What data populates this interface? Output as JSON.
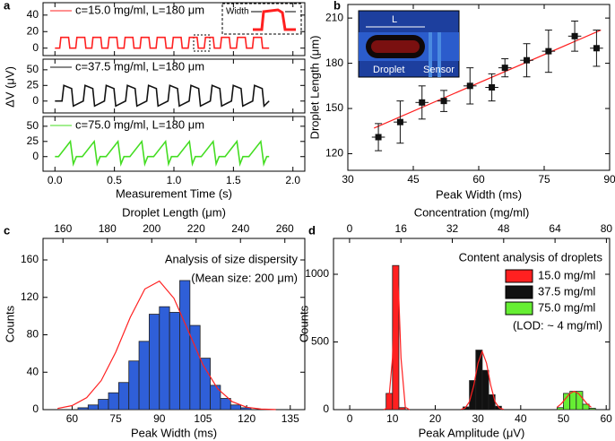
{
  "chart_data": [
    {
      "type": "line",
      "panel": "a",
      "xlim": [
        -0.1,
        2.1
      ],
      "xticks": [
        {
          "value": 0,
          "label": "0.0"
        },
        0.5,
        {
          "value": 1,
          "label": "1.0"
        },
        1.5,
        {
          "value": 2,
          "label": "2.0"
        }
      ],
      "ylim": [
        -9,
        55
      ],
      "yticks": [
        0,
        20,
        40
      ],
      "annotation": "Width",
      "series": [
        {
          "name": "c=15.0 mg/ml, L=180 μm",
          "color": "#ff2020",
          "x": [
            0,
            0.04,
            0.05,
            0.115,
            0.125,
            0.175,
            0.185,
            0.25,
            0.26,
            0.31,
            0.32,
            0.385,
            0.395,
            0.445,
            0.455,
            0.52,
            0.53,
            0.58,
            0.59,
            0.655,
            0.665,
            0.715,
            0.725,
            0.79,
            0.8,
            0.85,
            0.86,
            0.925,
            0.935,
            0.985,
            0.995,
            1.06,
            1.07,
            1.12,
            1.13,
            1.195,
            1.205,
            1.255,
            1.265,
            1.33,
            1.34,
            1.39,
            1.4,
            1.465,
            1.475,
            1.525,
            1.535,
            1.6,
            1.61,
            1.66,
            1.67,
            1.735,
            1.745,
            1.8
          ],
          "values": [
            0,
            0,
            13,
            13,
            0,
            0,
            13,
            13,
            0,
            0,
            13,
            13,
            0,
            0,
            13,
            13,
            0,
            0,
            13,
            13,
            0,
            0,
            13,
            13,
            0,
            0,
            13,
            13,
            0,
            0,
            13,
            13,
            0,
            0,
            13,
            13,
            0,
            0,
            13,
            13,
            0,
            0,
            13,
            13,
            0,
            0,
            13,
            13,
            0,
            0,
            13,
            13,
            0,
            0
          ]
        }
      ]
    },
    {
      "type": "line",
      "ylabel": "ΔV (μV)",
      "xlim": [
        -0.1,
        2.1
      ],
      "xticks": [
        {
          "value": 0,
          "label": "0.0"
        },
        0.5,
        {
          "value": 1,
          "label": "1.0"
        },
        1.5,
        {
          "value": 2,
          "label": "2.0"
        }
      ],
      "ylim": [
        -19,
        67
      ],
      "yticks": [
        0,
        25,
        50
      ],
      "series": [
        {
          "name": "c=37.5 mg/ml, L=180 μm",
          "color": "#111111",
          "x": [
            0,
            0.06,
            0.075,
            0.14,
            0.155,
            0.238,
            0.253,
            0.318,
            0.333,
            0.416,
            0.431,
            0.496,
            0.511,
            0.594,
            0.609,
            0.674,
            0.689,
            0.772,
            0.787,
            0.852,
            0.867,
            0.95,
            0.965,
            1.03,
            1.045,
            1.128,
            1.143,
            1.208,
            1.223,
            1.306,
            1.321,
            1.386,
            1.401,
            1.484,
            1.499,
            1.564,
            1.579,
            1.662,
            1.677,
            1.742,
            1.757,
            1.8
          ],
          "values": [
            0,
            0,
            25,
            20,
            -8,
            0,
            25,
            20,
            -8,
            0,
            25,
            20,
            -8,
            0,
            25,
            20,
            -8,
            0,
            25,
            20,
            -8,
            0,
            25,
            20,
            -8,
            0,
            25,
            20,
            -8,
            0,
            25,
            20,
            -8,
            0,
            25,
            20,
            -8,
            0,
            25,
            20,
            -8,
            0
          ]
        }
      ]
    },
    {
      "type": "line",
      "xlabel": "Measurement Time (s)",
      "xlim": [
        -0.1,
        2.1
      ],
      "xticks": [
        {
          "value": 0,
          "label": "0.0"
        },
        0.5,
        {
          "value": 1,
          "label": "1.0"
        },
        1.5,
        {
          "value": 2,
          "label": "2.0"
        }
      ],
      "ylim": [
        -24,
        66
      ],
      "yticks": [
        0,
        25,
        50
      ],
      "series": [
        {
          "name": "c=75.0 mg/ml, L=180 μm",
          "color": "#44dd22",
          "x": [
            0,
            0.03,
            0.13,
            0.155,
            0.18,
            0.23,
            0.33,
            0.355,
            0.38,
            0.43,
            0.53,
            0.555,
            0.58,
            0.63,
            0.73,
            0.755,
            0.78,
            0.83,
            0.93,
            0.955,
            0.98,
            1.03,
            1.13,
            1.155,
            1.18,
            1.23,
            1.33,
            1.355,
            1.38,
            1.43,
            1.53,
            1.555,
            1.58,
            1.63,
            1.73,
            1.755,
            1.78,
            1.8
          ],
          "values": [
            0,
            0,
            25,
            -12,
            0,
            0,
            25,
            -12,
            0,
            0,
            25,
            -12,
            0,
            0,
            25,
            -12,
            0,
            0,
            25,
            -12,
            0,
            0,
            25,
            -12,
            0,
            0,
            25,
            -12,
            0,
            0,
            25,
            -12,
            0,
            0,
            25,
            -12,
            0,
            0
          ]
        }
      ]
    },
    {
      "type": "scatter",
      "panel": "b",
      "xlabel": "Peak Width (ms)",
      "ylabel": "Droplet Length (μm)",
      "xlim": [
        30,
        90
      ],
      "xticks": [
        30,
        45,
        60,
        75,
        90
      ],
      "ylim": [
        109,
        219
      ],
      "yticks": [
        120,
        150,
        180,
        210
      ],
      "inset_labels": [
        "L",
        "Droplet",
        "Sensor"
      ],
      "x": [
        37,
        42,
        47,
        52,
        58,
        63,
        66,
        71,
        76,
        82,
        87
      ],
      "xerr": [
        1.5,
        1.5,
        1.5,
        1.5,
        1.5,
        1.5,
        1.5,
        1.5,
        1.5,
        1.5,
        1.5
      ],
      "values": [
        131,
        141,
        154,
        155,
        165,
        164,
        177,
        182,
        188,
        198,
        190
      ],
      "yerr": [
        9,
        14,
        11,
        7,
        12,
        9,
        6,
        11,
        14,
        10,
        12
      ],
      "color": "#111111",
      "fit": {
        "color": "#ff2020",
        "x": [
          36,
          88
        ],
        "y": [
          137,
          202
        ]
      }
    },
    {
      "type": "histogram",
      "panel": "c",
      "xlabel": "Peak Width (ms)",
      "ylabel": "Counts",
      "x2label": "Droplet Length (μm)",
      "xlim": [
        50,
        140
      ],
      "xticks": [
        60,
        75,
        90,
        105,
        120,
        135
      ],
      "x2lim": [
        151,
        269
      ],
      "x2ticks": [
        160,
        180,
        200,
        220,
        240,
        260
      ],
      "ylim": [
        0,
        183
      ],
      "yticks": [
        0,
        40,
        80,
        120,
        160
      ],
      "texts": [
        "Analysis of size dispersity",
        "(Mean size: 200 μm)"
      ],
      "series": [
        {
          "color": "#2f5fd8",
          "bins": [
            62,
            65.5,
            69,
            72.5,
            76,
            79.5,
            83,
            86.5,
            90,
            93.5,
            97,
            100.5,
            104,
            107.5,
            111,
            114.5,
            118,
            121.5
          ],
          "counts": [
            2,
            5,
            11,
            18,
            29,
            52,
            73,
            102,
            110,
            104,
            138,
            90,
            55,
            26,
            12,
            5,
            2
          ],
          "fit": {
            "color": "#ff2020",
            "x": [
              55,
              60,
              65,
              70,
              75,
              80,
              85,
              90,
              95,
              100,
              105,
              110,
              115,
              120,
              125,
              130
            ],
            "y": [
              1.2,
              4.3,
              12.8,
              31,
              61.4,
              98.7,
              129,
              137.4,
              119,
              83.7,
              47.9,
              22.4,
              8.5,
              2.6,
              0.6,
              0.1
            ]
          }
        }
      ]
    },
    {
      "type": "histogram",
      "panel": "d",
      "xlabel": "Peak Amplitude (μV)",
      "ylabel": "Counts",
      "x2label": "Concentration (mg/ml)",
      "xlim": [
        -3.8,
        60.8
      ],
      "xticks": [
        0,
        10,
        20,
        30,
        40,
        50,
        60
      ],
      "x2lim": [
        -5,
        81
      ],
      "x2ticks": [
        0,
        16,
        32,
        48,
        64,
        80
      ],
      "ylim": [
        0,
        1265
      ],
      "yticks": [
        0,
        500,
        1000
      ],
      "legend_title": "Content analysis of droplets",
      "texts": [
        "(LOD: ~ 4 mg/ml)"
      ],
      "series": [
        {
          "name": "15.0 mg/ml",
          "color": "#ff2020",
          "bins": [
            8.5,
            10,
            11.5,
            13
          ],
          "counts": [
            120,
            1065,
            15
          ],
          "fit": {
            "color": "#ff2020",
            "x": [
              8,
              9,
              10,
              10.5,
              11,
              11.5,
              12,
              13,
              14
            ],
            "y": [
              0.1,
              18,
              382,
              821,
              1060,
              821,
              382,
              18,
              0.1
            ]
          }
        },
        {
          "name": "37.5 mg/ml",
          "color": "#111111",
          "bins": [
            26.5,
            28,
            29.5,
            31,
            32.5,
            34,
            35.5
          ],
          "counts": [
            20,
            215,
            440,
            290,
            110,
            25
          ],
          "fit": {
            "color": "#ff2020",
            "x": [
              26,
              27,
              28,
              29,
              30,
              31,
              32,
              33,
              34,
              35,
              36
            ],
            "y": [
              1.7,
              12,
              58,
              177,
              344,
              430,
              344,
              177,
              58,
              12,
              1.7
            ]
          }
        },
        {
          "name": "75.0 mg/ml",
          "color": "#66ee33",
          "bins": [
            48.5,
            50,
            51.5,
            53,
            54.5,
            56,
            57.5
          ],
          "counts": [
            15,
            120,
            135,
            135,
            40,
            10
          ],
          "fit": {
            "color": "#ff2020",
            "x": [
              48.5,
              49.5,
              50.5,
              51.5,
              52.5,
              53.5,
              54.5,
              55.5,
              56.5
            ],
            "y": [
              18,
              44,
              82,
              119,
              135,
              119,
              82,
              44,
              18
            ]
          }
        }
      ]
    }
  ]
}
